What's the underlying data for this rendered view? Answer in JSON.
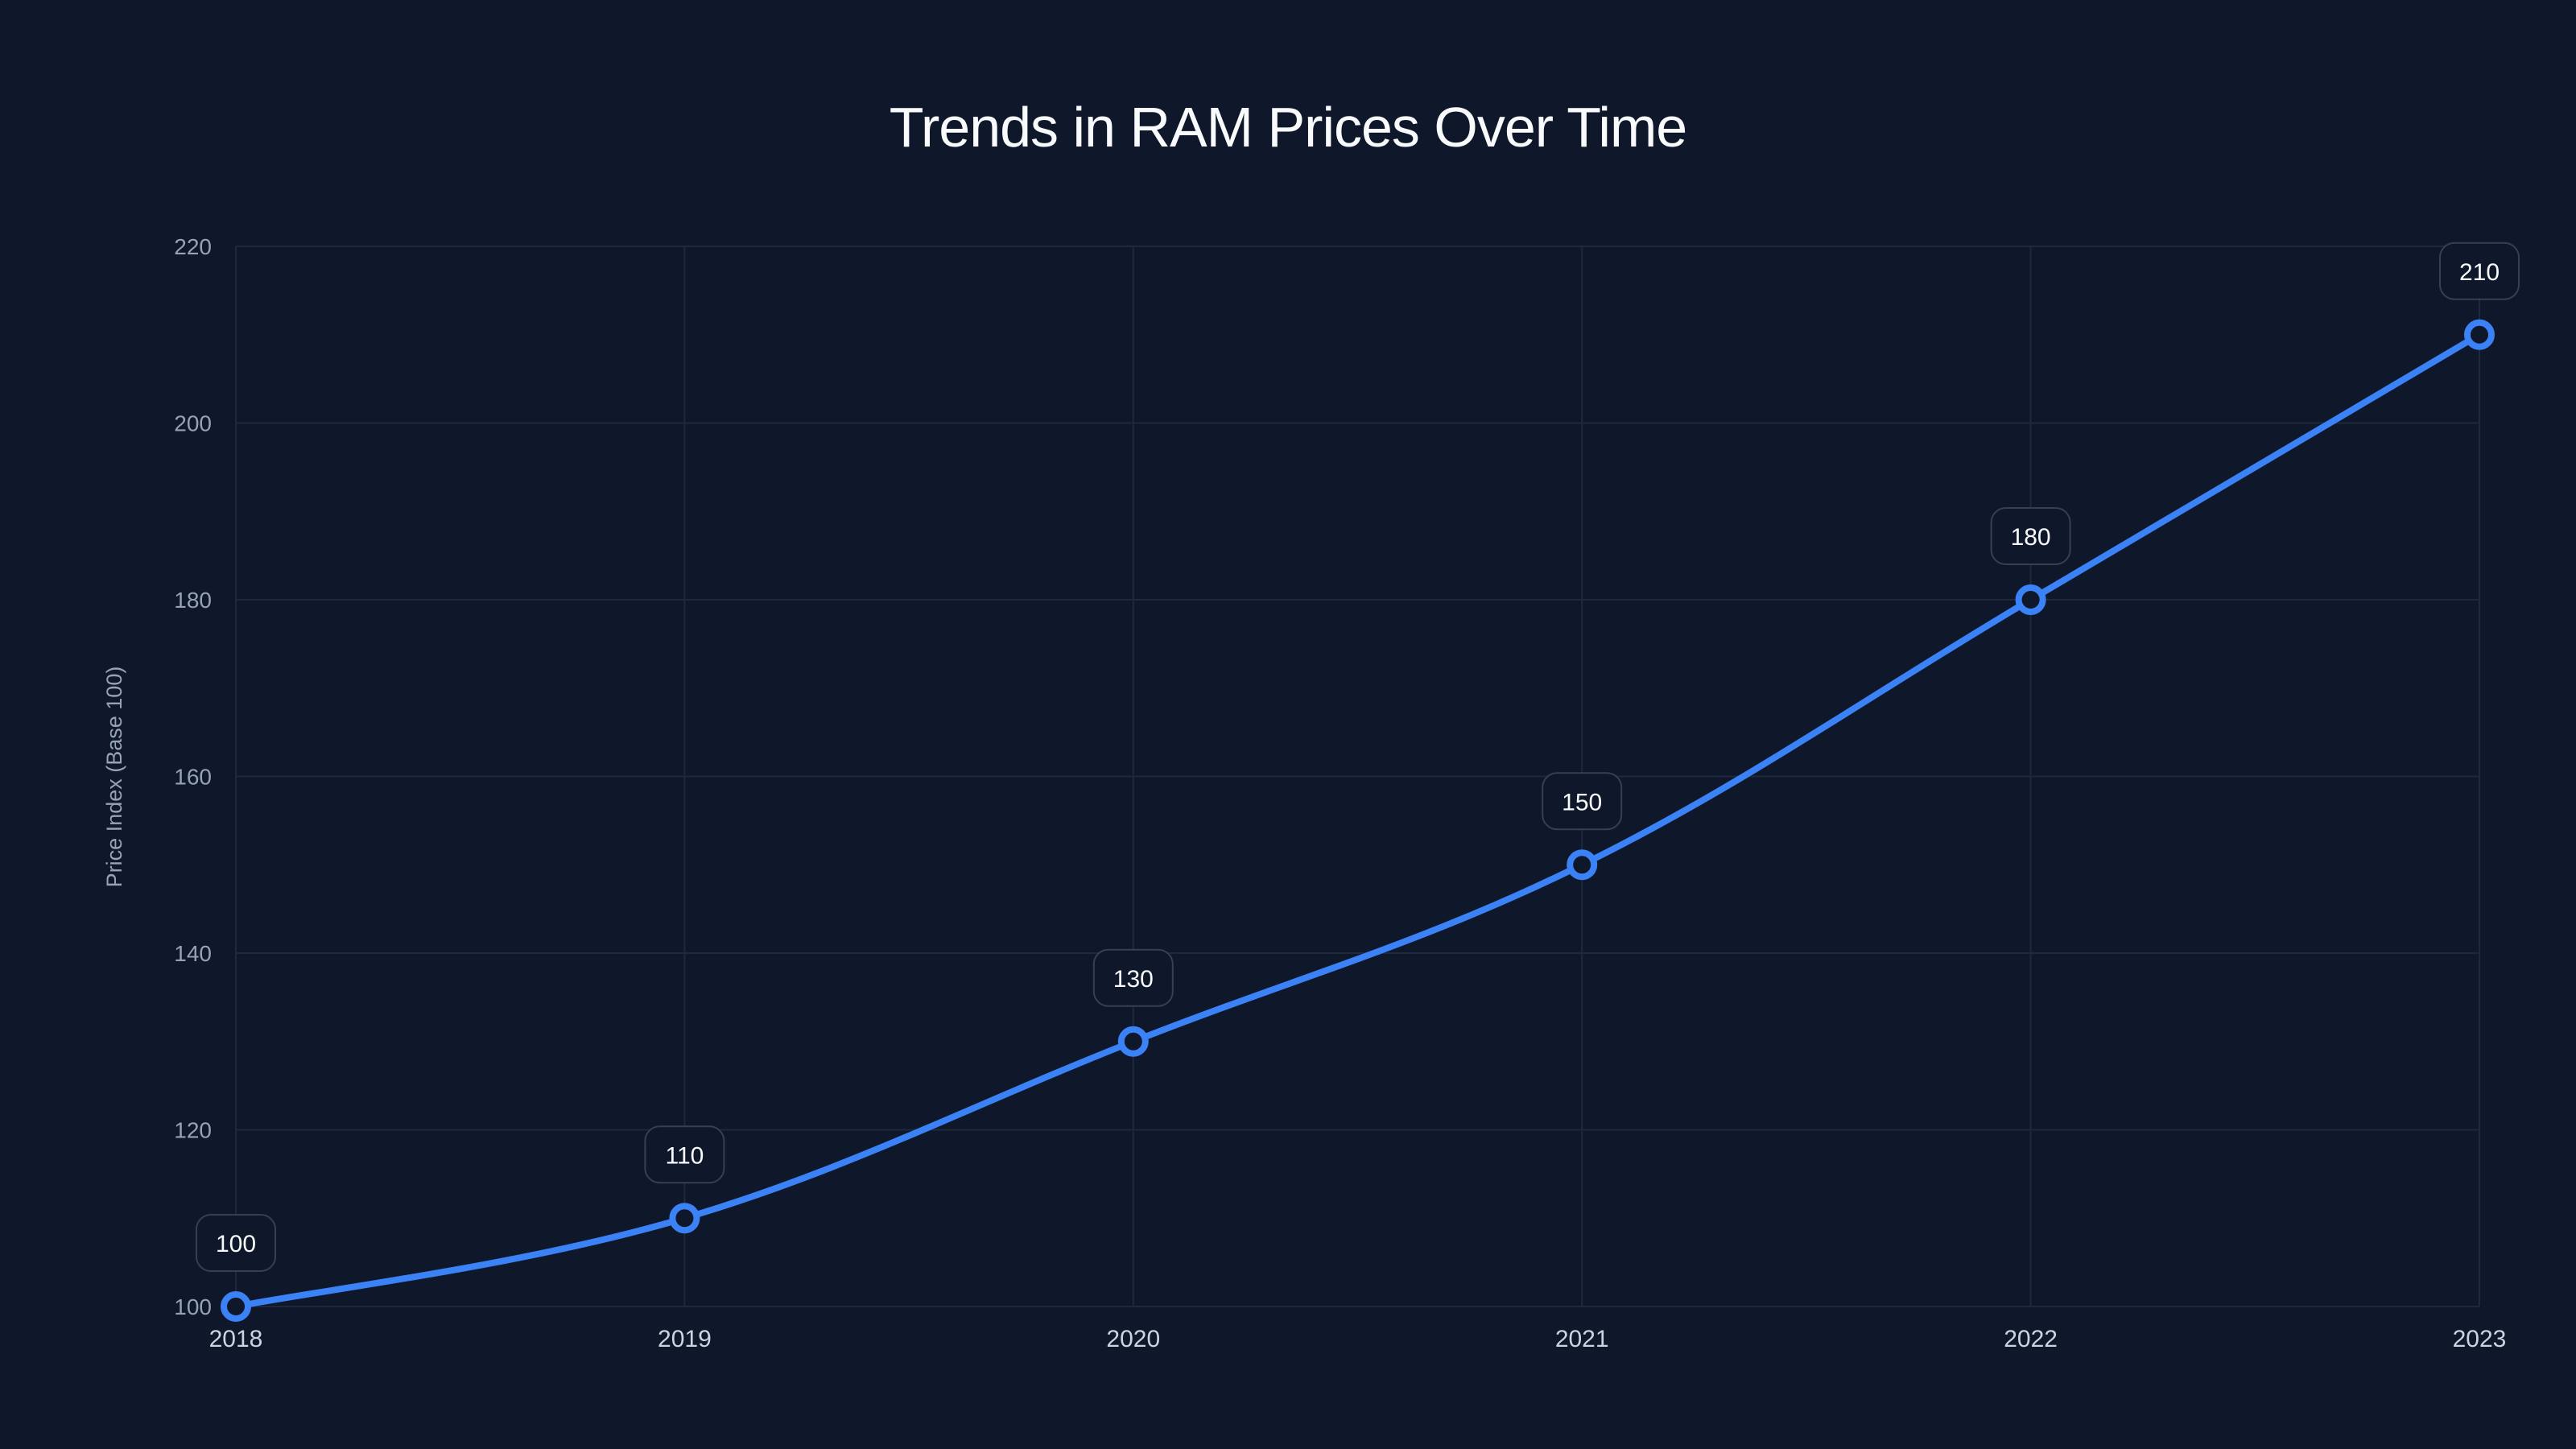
{
  "chart_data": {
    "type": "line",
    "title": "Trends in RAM Prices Over Time",
    "xlabel": "",
    "ylabel": "Price Index (Base 100)",
    "categories": [
      "2018",
      "2019",
      "2020",
      "2021",
      "2022",
      "2023"
    ],
    "series": [
      {
        "name": "Price Index",
        "values": [
          100,
          110,
          130,
          150,
          180,
          210
        ],
        "color": "#3b82f6"
      }
    ],
    "ylim": [
      100,
      220
    ],
    "yticks": [
      100,
      120,
      140,
      160,
      180,
      200,
      220
    ],
    "grid": true,
    "legend": "none",
    "data_labels": true
  },
  "colors": {
    "background": "#0f172a",
    "line": "#3b82f6",
    "grid": "#1e293b",
    "label_box_fill": "#0f172a",
    "label_box_stroke": "#334155",
    "tick_text": "#94a3b8",
    "title_text": "#f8fafc"
  }
}
